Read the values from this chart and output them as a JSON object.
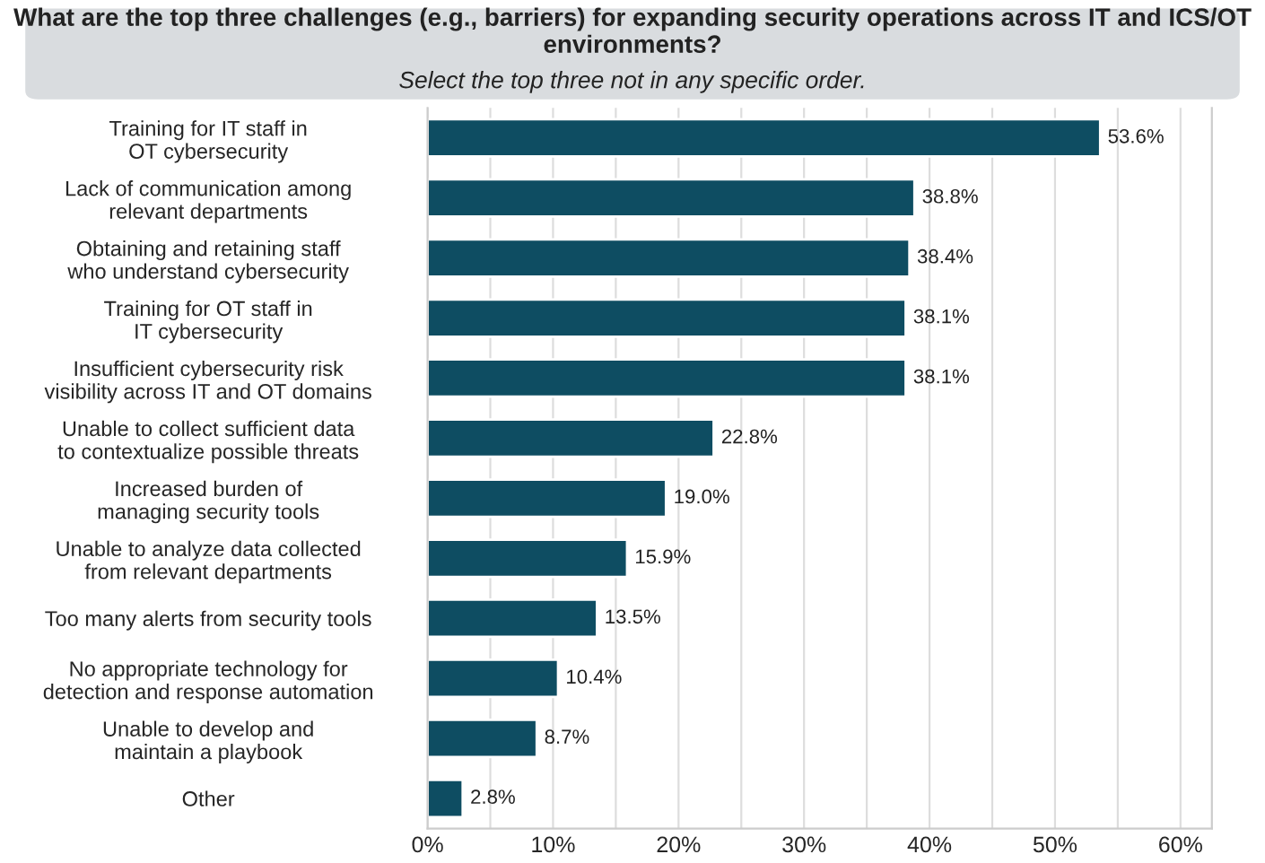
{
  "chart_data": {
    "type": "bar",
    "orientation": "horizontal",
    "title": "What are the top three challenges (e.g., barriers) for expanding security operations across IT and ICS/OT environments?",
    "subtitle": "Select the top three not in any specific order.",
    "categories": [
      "Training for IT staff in\nOT cybersecurity",
      "Lack of communication among\nrelevant departments",
      "Obtaining and retaining staff\nwho understand cybersecurity",
      "Training for OT staff in\nIT cybersecurity",
      "Insufficient cybersecurity risk\nvisibility across IT and OT domains",
      "Unable to collect sufficient data\nto contextualize possible threats",
      "Increased burden of\nmanaging security tools",
      "Unable to analyze data collected\nfrom relevant departments",
      "Too many alerts from security tools",
      "No appropriate technology for\ndetection and response automation",
      "Unable to develop and\nmaintain a playbook",
      "Other"
    ],
    "values": [
      53.6,
      38.8,
      38.4,
      38.1,
      38.1,
      22.8,
      19.0,
      15.9,
      13.5,
      10.4,
      8.7,
      2.8
    ],
    "value_labels": [
      "53.6%",
      "38.8%",
      "38.4%",
      "38.1%",
      "38.1%",
      "22.8%",
      "19.0%",
      "15.9%",
      "13.5%",
      "10.4%",
      "8.7%",
      "2.8%"
    ],
    "color": "#0e4d62",
    "xlim": [
      0,
      62.5
    ],
    "xticks": [
      {
        "value": 0,
        "label": "0%"
      },
      {
        "value": 5,
        "label": null
      },
      {
        "value": 10,
        "label": "10%"
      },
      {
        "value": 15,
        "label": null
      },
      {
        "value": 20,
        "label": "20%"
      },
      {
        "value": 25,
        "label": null
      },
      {
        "value": 30,
        "label": "30%"
      },
      {
        "value": 35,
        "label": null
      },
      {
        "value": 40,
        "label": "40%"
      },
      {
        "value": 45,
        "label": null
      },
      {
        "value": 50,
        "label": "50%"
      },
      {
        "value": 55,
        "label": null
      },
      {
        "value": 60,
        "label": "60%"
      }
    ],
    "grid": "x"
  }
}
